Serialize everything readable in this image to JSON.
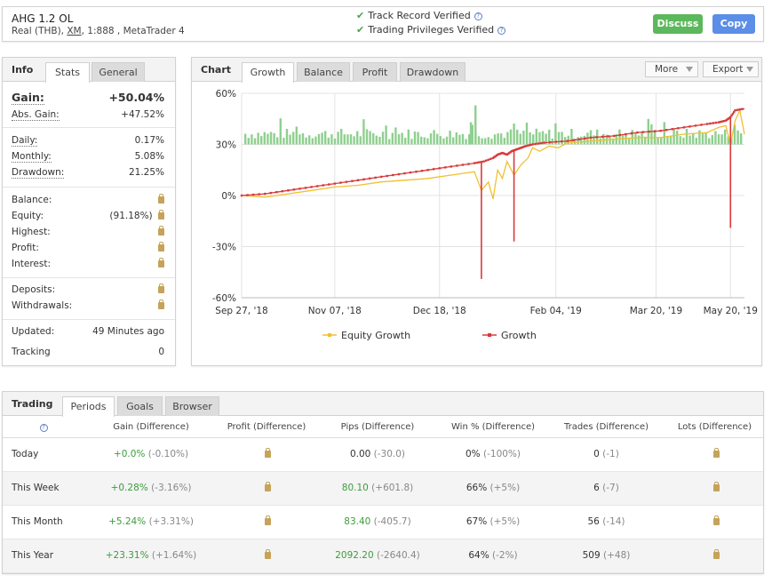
{
  "header": {
    "title": "AHG 1.2 OL",
    "sub_pre": "Real (THB), ",
    "sub_broker": "XM",
    "sub_post": ", 1:888 , MetaTrader 4",
    "verified1": "Track Record Verified",
    "verified2": "Trading Privileges Verified",
    "help_glyph": "?",
    "discuss_label": "Discuss",
    "copy_label": "Copy"
  },
  "info": {
    "title": "Info",
    "tabs": [
      "Stats",
      "General"
    ],
    "gain_label": "Gain:",
    "gain_value": "+50.04%",
    "abs_gain_label": "Abs. Gain:",
    "abs_gain_value": "+47.52%",
    "daily_label": "Daily:",
    "daily_value": "0.17%",
    "monthly_label": "Monthly:",
    "monthly_value": "5.08%",
    "drawdown_label": "Drawdown:",
    "drawdown_value": "21.25%",
    "balance_label": "Balance:",
    "equity_label": "Equity:",
    "equity_value": "(91.18%)",
    "highest_label": "Highest:",
    "profit_label": "Profit:",
    "interest_label": "Interest:",
    "deposits_label": "Deposits:",
    "withdrawals_label": "Withdrawals:",
    "updated_label": "Updated:",
    "updated_value": "49 Minutes ago",
    "tracking_label": "Tracking",
    "tracking_value": "0",
    "lock_icon": "lock-icon"
  },
  "chart_panel": {
    "title": "Chart",
    "tabs": [
      "Growth",
      "Balance",
      "Profit",
      "Drawdown"
    ],
    "more_label": "More",
    "export_label": "Export"
  },
  "chart_data": {
    "type": "line",
    "y_ticks": [
      "60%",
      "30%",
      "0%",
      "-30%",
      "-60%"
    ],
    "ylim": [
      -60,
      60
    ],
    "x_ticks": [
      "Sep 27, '18",
      "Nov 07, '18",
      "Dec 18, '18",
      "Feb 04, '19",
      "Mar 20, '19",
      "May 20, '19"
    ],
    "legend_position": "bottom",
    "series": [
      {
        "name": "Equity Growth",
        "color": "#f0c030",
        "points": [
          [
            0,
            0
          ],
          [
            10,
            -1
          ],
          [
            20,
            1
          ],
          [
            30,
            3
          ],
          [
            40,
            5
          ],
          [
            50,
            6
          ],
          [
            60,
            8
          ],
          [
            70,
            9
          ],
          [
            80,
            10
          ],
          [
            90,
            12
          ],
          [
            95,
            13
          ],
          [
            100,
            14
          ],
          [
            103,
            3
          ],
          [
            106,
            8
          ],
          [
            108,
            -2
          ],
          [
            110,
            15
          ],
          [
            112,
            10
          ],
          [
            114,
            20
          ],
          [
            117,
            12
          ],
          [
            120,
            18
          ],
          [
            123,
            22
          ],
          [
            125,
            28
          ],
          [
            128,
            26
          ],
          [
            132,
            29
          ],
          [
            136,
            28
          ],
          [
            140,
            31
          ],
          [
            150,
            32
          ],
          [
            160,
            33
          ],
          [
            170,
            34
          ],
          [
            180,
            34
          ],
          [
            190,
            36
          ],
          [
            200,
            37
          ],
          [
            205,
            40
          ],
          [
            208,
            41
          ],
          [
            210,
            30
          ],
          [
            212,
            44
          ],
          [
            214,
            50
          ],
          [
            216,
            36
          ]
        ]
      },
      {
        "name": "Growth",
        "color": "#d83a3a",
        "points": [
          [
            0,
            0
          ],
          [
            10,
            1
          ],
          [
            20,
            3
          ],
          [
            30,
            5
          ],
          [
            40,
            7
          ],
          [
            50,
            9
          ],
          [
            60,
            11
          ],
          [
            70,
            13
          ],
          [
            80,
            15
          ],
          [
            90,
            17
          ],
          [
            100,
            19
          ],
          [
            104,
            20
          ],
          [
            108,
            22
          ],
          [
            110,
            24
          ],
          [
            112,
            25
          ],
          [
            114,
            24
          ],
          [
            116,
            26
          ],
          [
            118,
            27
          ],
          [
            120,
            28
          ],
          [
            122,
            29
          ],
          [
            125,
            30
          ],
          [
            130,
            31
          ],
          [
            140,
            32
          ],
          [
            150,
            34
          ],
          [
            160,
            35
          ],
          [
            170,
            37
          ],
          [
            180,
            38
          ],
          [
            190,
            40
          ],
          [
            200,
            42
          ],
          [
            205,
            43
          ],
          [
            208,
            44
          ],
          [
            210,
            46
          ],
          [
            212,
            50
          ],
          [
            216,
            51
          ]
        ]
      },
      {
        "name": "Growth spikes",
        "color": "#d83a3a",
        "spikes": [
          [
            103,
            -49
          ],
          [
            117,
            -27
          ],
          [
            210,
            -19
          ]
        ]
      }
    ],
    "xlim": [
      0,
      216
    ]
  },
  "trading": {
    "title": "Trading",
    "tabs": [
      "Periods",
      "Goals",
      "Browser"
    ],
    "headers": [
      "Gain (Difference)",
      "Profit (Difference)",
      "Pips (Difference)",
      "Win % (Difference)",
      "Trades (Difference)",
      "Lots (Difference)"
    ],
    "rows": [
      {
        "period": "Today",
        "gain": "+0.0%",
        "gain_diff": "(-0.10%)",
        "pips": "0.00",
        "pips_diff": "(-30.0)",
        "win": "0%",
        "win_diff": "(-100%)",
        "trades": "0",
        "trades_diff": "(-1)"
      },
      {
        "period": "This Week",
        "gain": "+0.28%",
        "gain_diff": "(-3.16%)",
        "pips": "80.10",
        "pips_diff": "(+601.8)",
        "win": "66%",
        "win_diff": "(+5%)",
        "trades": "6",
        "trades_diff": "(-7)"
      },
      {
        "period": "This Month",
        "gain": "+5.24%",
        "gain_diff": "(+3.31%)",
        "pips": "83.40",
        "pips_diff": "(-405.7)",
        "win": "67%",
        "win_diff": "(+5%)",
        "trades": "56",
        "trades_diff": "(-14)"
      },
      {
        "period": "This Year",
        "gain": "+23.31%",
        "gain_diff": "(+1.64%)",
        "pips": "2092.20",
        "pips_diff": "(-2640.4)",
        "win": "64%",
        "win_diff": "(-2%)",
        "trades": "509",
        "trades_diff": "(+48)"
      }
    ]
  }
}
